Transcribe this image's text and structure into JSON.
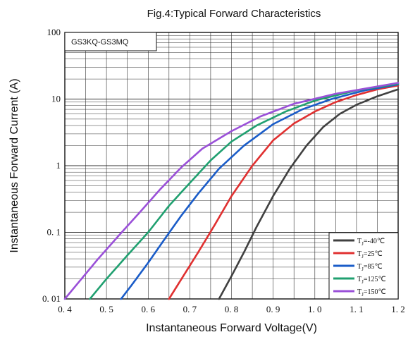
{
  "chart_data": {
    "type": "line",
    "title": "Fig.4:Typical  Forward Characteristics",
    "xlabel": "Instantaneous Forward Voltage(V)",
    "ylabel": "Instantaneous Forward Current (A)",
    "part_label": "GS3KQ-GS3MQ",
    "xlim": [
      0.4,
      1.2
    ],
    "ylim": [
      0.01,
      100
    ],
    "yscale": "log",
    "grid": true,
    "legend_position": "bottom-right",
    "x_ticks": [
      "0. 4",
      "0. 5",
      "0. 6",
      "0. 7",
      "0. 8",
      "0. 9",
      "1. 0",
      "1. 1",
      "1. 2"
    ],
    "x_tick_values": [
      0.4,
      0.5,
      0.6,
      0.7,
      0.8,
      0.9,
      1.0,
      1.1,
      1.2
    ],
    "y_ticks": [
      "0. 01",
      "0. 1",
      "1",
      "10",
      "100"
    ],
    "y_tick_values": [
      0.01,
      0.1,
      1,
      10,
      100
    ],
    "series": [
      {
        "name": "TJ=-40℃",
        "legend": {
          "main": "T",
          "sub": "J",
          "rest": "=-40℃"
        },
        "color": "#404040",
        "x": [
          0.77,
          0.8,
          0.83,
          0.86,
          0.9,
          0.94,
          0.98,
          1.02,
          1.06,
          1.1,
          1.15,
          1.2
        ],
        "y": [
          0.01,
          0.022,
          0.05,
          0.12,
          0.35,
          0.9,
          2.0,
          3.8,
          6.0,
          8.2,
          11.0,
          14.0
        ]
      },
      {
        "name": "TJ=25℃",
        "legend": {
          "main": "T",
          "sub": "J",
          "rest": "=25℃"
        },
        "color": "#e03030",
        "x": [
          0.65,
          0.68,
          0.72,
          0.76,
          0.8,
          0.85,
          0.9,
          0.95,
          1.0,
          1.05,
          1.1,
          1.15,
          1.2
        ],
        "y": [
          0.01,
          0.02,
          0.05,
          0.13,
          0.35,
          1.0,
          2.4,
          4.3,
          6.5,
          9.0,
          11.5,
          14.0,
          16.0
        ]
      },
      {
        "name": "TJ=85℃",
        "legend": {
          "main": "T",
          "sub": "J",
          "rest": "=85℃"
        },
        "color": "#1a5cc8",
        "x": [
          0.535,
          0.56,
          0.6,
          0.64,
          0.68,
          0.72,
          0.77,
          0.83,
          0.9,
          0.97,
          1.04,
          1.12,
          1.2
        ],
        "y": [
          0.01,
          0.016,
          0.035,
          0.08,
          0.18,
          0.38,
          0.9,
          2.0,
          4.2,
          7.0,
          10.0,
          13.5,
          16.5
        ]
      },
      {
        "name": "TJ=125℃",
        "legend": {
          "main": "T",
          "sub": "J",
          "rest": "=125℃"
        },
        "color": "#20a070",
        "x": [
          0.46,
          0.5,
          0.55,
          0.6,
          0.65,
          0.7,
          0.75,
          0.8,
          0.86,
          0.93,
          1.0,
          1.1,
          1.2
        ],
        "y": [
          0.01,
          0.02,
          0.045,
          0.1,
          0.25,
          0.55,
          1.2,
          2.3,
          4.0,
          6.5,
          9.5,
          13.5,
          17.0
        ]
      },
      {
        "name": "TJ=150℃",
        "legend": {
          "main": "T",
          "sub": "J",
          "rest": "=150℃"
        },
        "color": "#9a50d8",
        "x": [
          0.4,
          0.44,
          0.48,
          0.53,
          0.58,
          0.63,
          0.68,
          0.73,
          0.8,
          0.87,
          0.95,
          1.05,
          1.2
        ],
        "y": [
          0.01,
          0.02,
          0.04,
          0.09,
          0.2,
          0.45,
          0.95,
          1.8,
          3.3,
          5.5,
          8.5,
          12.0,
          17.5
        ]
      }
    ]
  }
}
